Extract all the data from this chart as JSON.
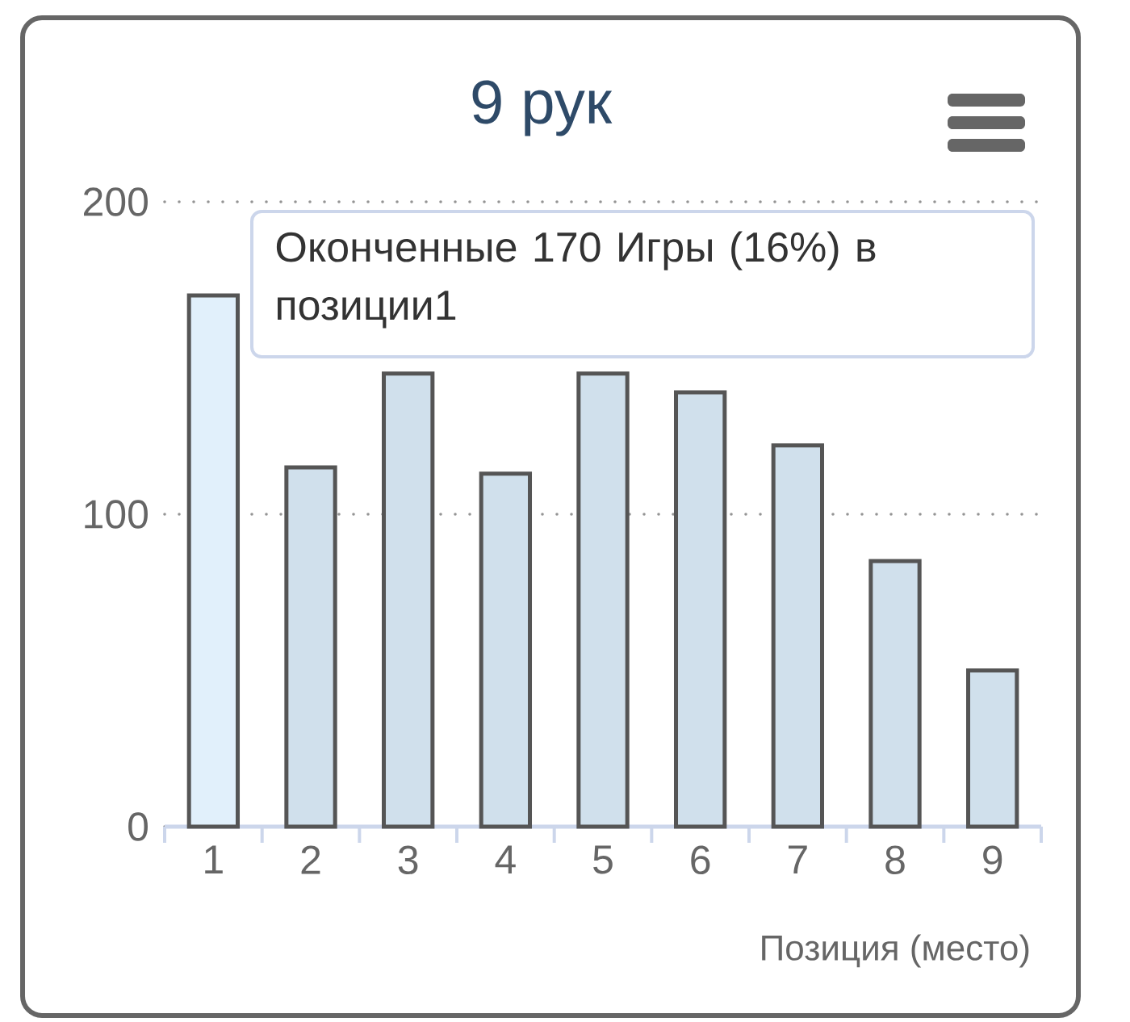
{
  "chart_data": {
    "type": "bar",
    "title": "9 рук",
    "xlabel": "Позиция (место)",
    "categories": [
      "1",
      "2",
      "3",
      "4",
      "5",
      "6",
      "7",
      "8",
      "9"
    ],
    "values": [
      170,
      115,
      145,
      113,
      145,
      139,
      122,
      85,
      50
    ],
    "colors": [
      "#e1f0fb",
      "#d0e0ec",
      "#d0e0ec",
      "#d0e0ec",
      "#d0e0ec",
      "#d0e0ec",
      "#d0e0ec",
      "#d0e0ec",
      "#d0e0ec"
    ],
    "ylim": [
      0,
      200
    ],
    "yticks": [
      0,
      100,
      200
    ],
    "grid": "y",
    "annotations": [
      "Оконченные 170 Игры (16%) в позиции1"
    ]
  }
}
